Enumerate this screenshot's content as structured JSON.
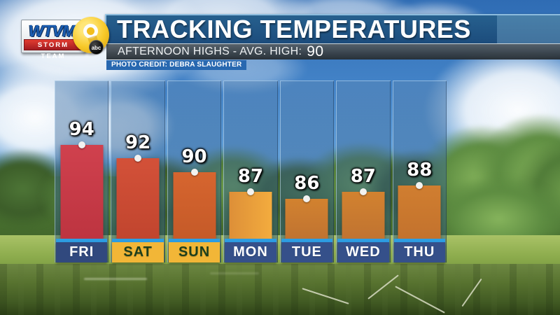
{
  "logo": {
    "station": "WTVM",
    "channel": "9",
    "tagline": "STORM TEAM",
    "network": "abc"
  },
  "header": {
    "title": "TRACKING TEMPERATURES",
    "subtitle": "AFTERNOON HIGHS - AVG. HIGH:",
    "avg_high": "90",
    "photo_credit": "PHOTO CREDIT: DEBRA SLAUGHTER"
  },
  "chart_data": {
    "type": "bar",
    "title": "TRACKING TEMPERATURES",
    "subtitle": "AFTERNOON HIGHS - AVG. HIGH: 90",
    "categories": [
      "FRI",
      "SAT",
      "SUN",
      "MON",
      "TUE",
      "WED",
      "THU"
    ],
    "values": [
      94,
      92,
      90,
      87,
      86,
      87,
      88
    ],
    "avg_high": 90,
    "ylim": [
      80,
      97
    ],
    "grid": false,
    "legend": "none",
    "days": [
      {
        "label": "FRI",
        "value": 94,
        "bar_colors": [
          "#d0414e",
          "#bd3440"
        ],
        "grad_dir": "180deg",
        "label_bg": "#31497e",
        "label_fg": "#ffffff"
      },
      {
        "label": "SAT",
        "value": 92,
        "bar_colors": [
          "#d35139",
          "#c1452e"
        ],
        "grad_dir": "180deg",
        "label_bg": "#f2b637",
        "label_fg": "#1e3f1c"
      },
      {
        "label": "SUN",
        "value": 90,
        "bar_colors": [
          "#d6652f",
          "#c55a28"
        ],
        "grad_dir": "180deg",
        "label_bg": "#f2b637",
        "label_fg": "#1e3f1c"
      },
      {
        "label": "MON",
        "value": 87,
        "bar_colors": [
          "#dd8f38",
          "#f3ac3e"
        ],
        "grad_dir": "90deg",
        "label_bg": "#35508a",
        "label_fg": "#ffffff"
      },
      {
        "label": "TUE",
        "value": 86,
        "bar_colors": [
          "#d2822f",
          "#c07331"
        ],
        "grad_dir": "180deg",
        "label_bg": "#35508a",
        "label_fg": "#ffffff"
      },
      {
        "label": "WED",
        "value": 87,
        "bar_colors": [
          "#d2822f",
          "#c07331"
        ],
        "grad_dir": "180deg",
        "label_bg": "#35508a",
        "label_fg": "#ffffff"
      },
      {
        "label": "THU",
        "value": 88,
        "bar_colors": [
          "#d07e30",
          "#c3722d"
        ],
        "grad_dir": "180deg",
        "label_bg": "#35508a",
        "label_fg": "#ffffff"
      }
    ],
    "colors": {
      "accent_strip": "#2d9de2",
      "header_blue": "#1c4c7c",
      "weekend_gold": "#f2b637",
      "dot": "#f2f2f0"
    }
  }
}
